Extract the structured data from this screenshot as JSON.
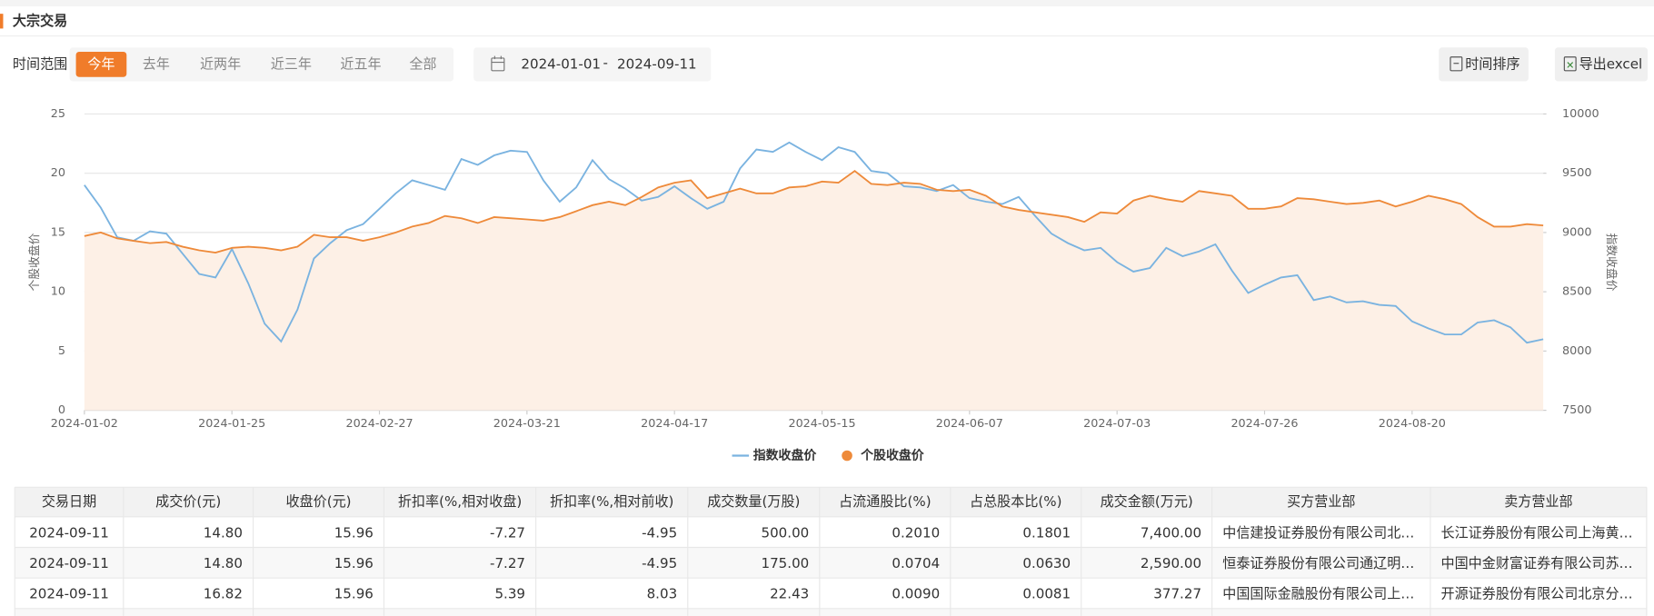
{
  "header": {
    "title": "大宗交易"
  },
  "toolbar": {
    "label": "时间范围",
    "ranges": [
      "今年",
      "去年",
      "近两年",
      "近三年",
      "近五年",
      "全部"
    ],
    "active": 0,
    "date_start": "2024-01-01",
    "date_sep": "-",
    "date_end": "2024-09-11",
    "sort_button": "时间排序",
    "export_button": "导出excel"
  },
  "chart_data": {
    "type": "line",
    "categories": [
      "2024-01-02",
      null,
      null,
      null,
      null,
      null,
      null,
      null,
      null,
      "2024-01-25",
      null,
      null,
      null,
      null,
      null,
      null,
      null,
      null,
      "2024-02-27",
      null,
      null,
      null,
      null,
      null,
      null,
      null,
      null,
      "2024-03-21",
      null,
      null,
      null,
      null,
      null,
      null,
      null,
      null,
      "2024-04-17",
      null,
      null,
      null,
      null,
      null,
      null,
      null,
      null,
      "2024-05-15",
      null,
      null,
      null,
      null,
      null,
      null,
      null,
      null,
      "2024-06-07",
      null,
      null,
      null,
      null,
      null,
      null,
      null,
      null,
      "2024-07-03",
      null,
      null,
      null,
      null,
      null,
      null,
      null,
      null,
      "2024-07-26",
      null,
      null,
      null,
      null,
      null,
      null,
      null,
      null,
      "2024-08-20",
      null,
      null,
      null,
      null,
      null,
      null,
      null,
      null
    ],
    "series": [
      {
        "name": "指数收盘价",
        "color": "#7ab3e0",
        "axis": "y2",
        "values": [
          9400,
          9210,
          8960,
          8930,
          9010,
          8990,
          8820,
          8650,
          8620,
          8860,
          8570,
          8230,
          8080,
          8350,
          8780,
          8910,
          9020,
          9070,
          9200,
          9330,
          9440,
          9400,
          9360,
          9620,
          9570,
          9650,
          9690,
          9680,
          9440,
          9260,
          9380,
          9610,
          9450,
          9370,
          9270,
          9300,
          9390,
          9290,
          9200,
          9260,
          9540,
          9700,
          9680,
          9760,
          9680,
          9610,
          9720,
          9680,
          9520,
          9500,
          9390,
          9380,
          9350,
          9400,
          9290,
          9260,
          9240,
          9300,
          9140,
          8990,
          8910,
          8850,
          8870,
          8750,
          8670,
          8700,
          8870,
          8800,
          8840,
          8900,
          8680,
          8490,
          8560,
          8620,
          8640,
          8430,
          8460,
          8410,
          8420,
          8390,
          8380,
          8250,
          8190,
          8140,
          8140,
          8240,
          8260,
          8200,
          8070,
          8100
        ]
      },
      {
        "name": "个股收盘价",
        "color": "#ee8a3a",
        "fill": "#fdf0e6",
        "values": [
          14.7,
          15.0,
          14.5,
          14.3,
          14.1,
          14.2,
          13.8,
          13.5,
          13.3,
          13.7,
          13.8,
          13.7,
          13.5,
          13.8,
          14.8,
          14.6,
          14.6,
          14.3,
          14.6,
          15.0,
          15.5,
          15.8,
          16.4,
          16.2,
          15.8,
          16.3,
          16.2,
          16.1,
          16.0,
          16.3,
          16.8,
          17.3,
          17.6,
          17.3,
          18.0,
          18.8,
          19.2,
          19.4,
          17.9,
          18.3,
          18.7,
          18.3,
          18.3,
          18.8,
          18.9,
          19.3,
          19.2,
          20.2,
          19.1,
          19.0,
          19.2,
          19.1,
          18.6,
          18.5,
          18.6,
          18.1,
          17.2,
          16.9,
          16.7,
          16.5,
          16.3,
          15.9,
          16.7,
          16.6,
          17.7,
          18.1,
          17.8,
          17.6,
          18.5,
          18.3,
          18.1,
          17.0,
          17.0,
          17.2,
          17.9,
          17.8,
          17.6,
          17.4,
          17.5,
          17.7,
          17.2,
          17.6,
          18.1,
          17.8,
          17.4,
          16.3,
          15.5,
          15.5,
          15.7,
          15.6
        ]
      }
    ],
    "ylabel": "个股收盘价",
    "y2label": "指数收盘价",
    "ylim": [
      0,
      25
    ],
    "yticks": [
      0,
      5,
      10,
      15,
      20,
      25
    ],
    "y2lim": [
      7500,
      10000
    ],
    "y2ticks": [
      7500,
      8000,
      8500,
      9000,
      9500,
      10000
    ],
    "grid": true,
    "legend": "bottom"
  },
  "table": {
    "columns": [
      "交易日期",
      "成交价(元)",
      "收盘价(元)",
      "折扣率(%,相对收盘)",
      "折扣率(%,相对前收)",
      "成交数量(万股)",
      "占流通股比(%)",
      "占总股本比(%)",
      "成交金额(万元)",
      "买方营业部",
      "卖方营业部"
    ],
    "rows": [
      [
        "2024-09-11",
        "14.80",
        "15.96",
        "-7.27",
        "-4.95",
        "500.00",
        "0.2010",
        "0.1801",
        "7,400.00",
        "中信建投证券股份有限公司北…",
        "长江证券股份有限公司上海黄…"
      ],
      [
        "2024-09-11",
        "14.80",
        "15.96",
        "-7.27",
        "-4.95",
        "175.00",
        "0.0704",
        "0.0630",
        "2,590.00",
        "恒泰证券股份有限公司通辽明…",
        "中国中金财富证券有限公司苏…"
      ],
      [
        "2024-09-11",
        "16.82",
        "15.96",
        "5.39",
        "8.03",
        "22.43",
        "0.0090",
        "0.0081",
        "377.27",
        "中国国际金融股份有限公司上…",
        "开源证券股份有限公司北京分…"
      ]
    ]
  }
}
